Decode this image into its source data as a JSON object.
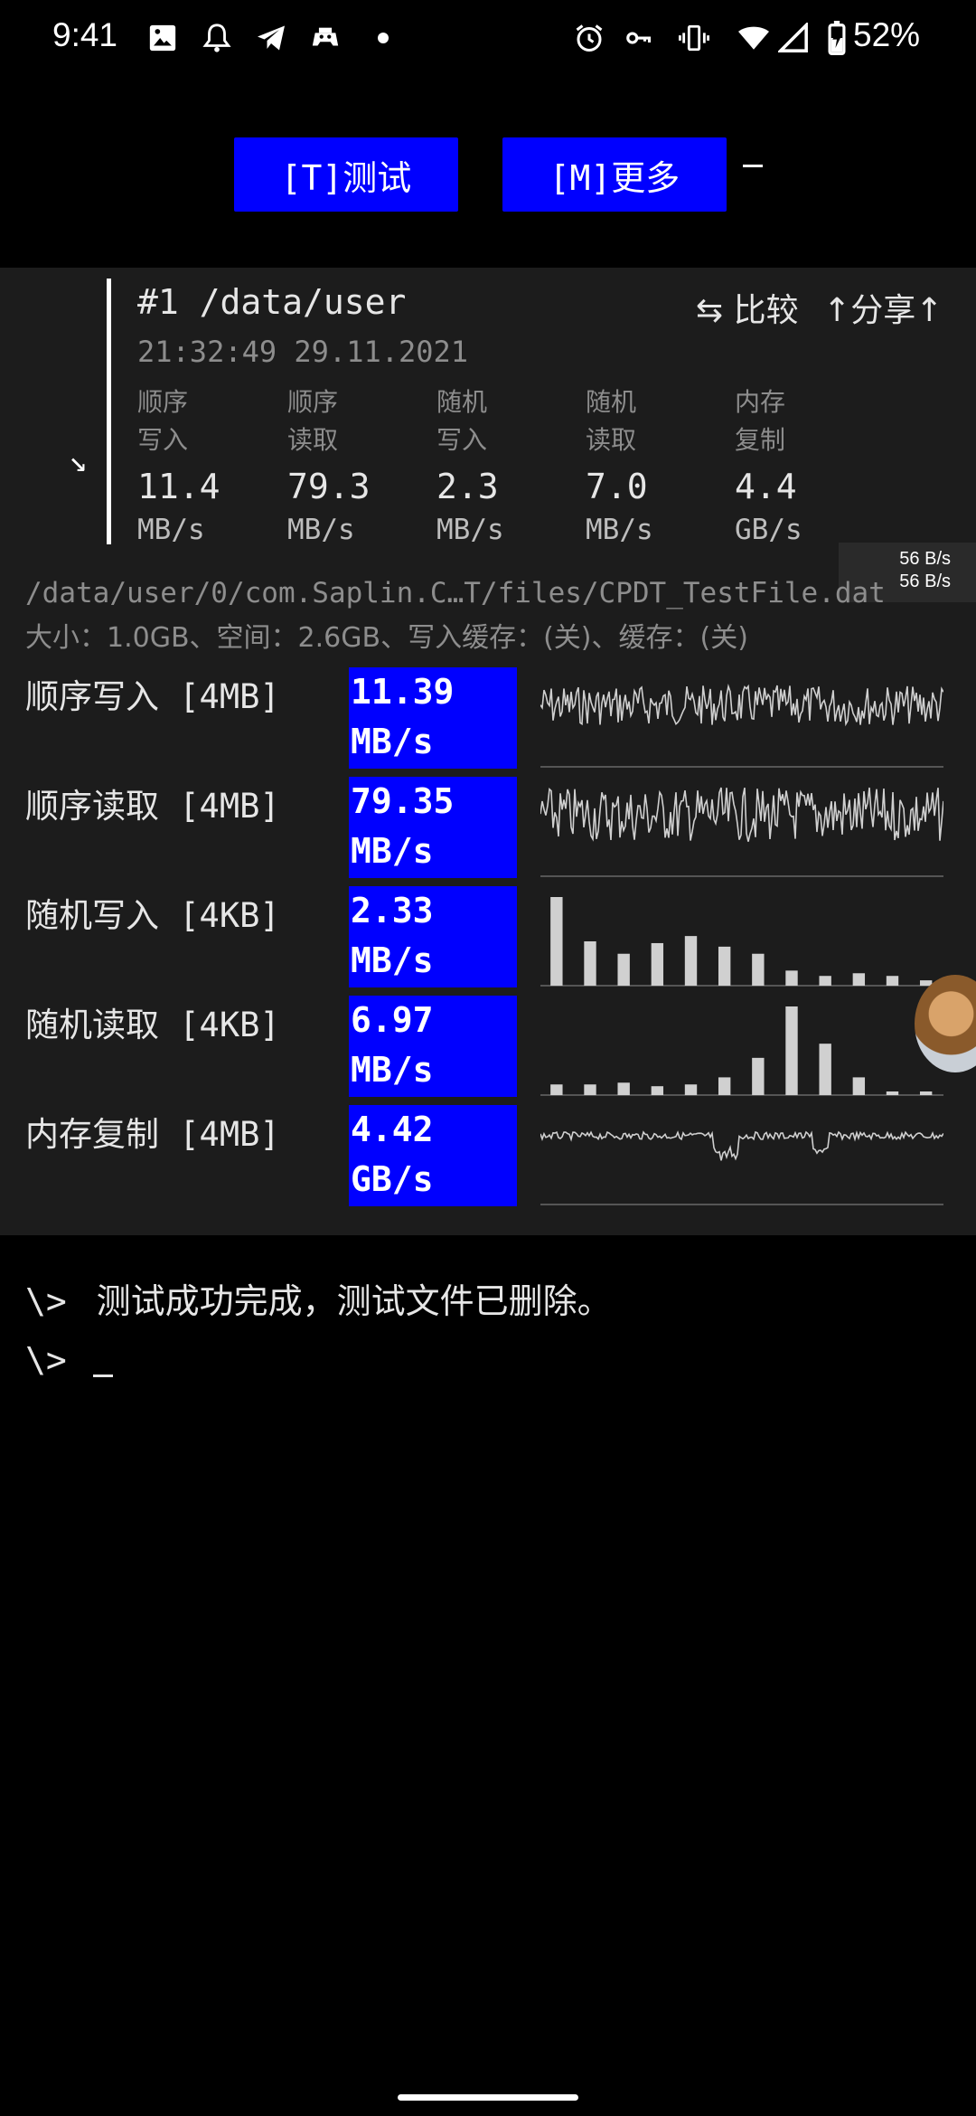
{
  "status_bar": {
    "time": "9:41",
    "battery_percent": "52%",
    "icons": [
      "image-icon",
      "notification-bell-icon",
      "telegram-icon",
      "game-icon",
      "dot-icon",
      "alarm-icon",
      "vpn-key-icon",
      "vibrate-icon",
      "wifi-icon",
      "signal-icon",
      "battery-charging-icon"
    ]
  },
  "toolbar": {
    "test_button": "[T]测试",
    "more_button": "[M]更多"
  },
  "summary": {
    "title": "#1 /data/user",
    "datetime": "21:32:49 29.11.2021",
    "compare_label": "⇆ 比较",
    "share_label": "↑分享↑",
    "metrics": [
      {
        "line1": "顺序",
        "line2": "写入",
        "value": "11.4",
        "unit": "MB/s"
      },
      {
        "line1": "顺序",
        "line2": "读取",
        "value": "79.3",
        "unit": "MB/s"
      },
      {
        "line1": "随机",
        "line2": "写入",
        "value": "2.3",
        "unit": "MB/s"
      },
      {
        "line1": "随机",
        "line2": "读取",
        "value": "7.0",
        "unit": "MB/s"
      },
      {
        "line1": "内存",
        "line2": "复制",
        "value": "4.4",
        "unit": "GB/s"
      }
    ]
  },
  "speed_overlay": {
    "line1": "56 B/s",
    "line2": "56 B/s"
  },
  "details": {
    "path": "/data/user/0/com.Saplin.C…T/files/CPDT_TestFile.dat",
    "info": "大小：1.0GB、空间：2.6GB、写入缓存：(关)、缓存：(关)"
  },
  "results": [
    {
      "label": "顺序写入 [4MB]",
      "value": "11.39",
      "unit": "MB/s",
      "graph": "wave"
    },
    {
      "label": "顺序读取 [4MB]",
      "value": "79.35",
      "unit": "MB/s",
      "graph": "wave"
    },
    {
      "label": "随机写入 [4KB]",
      "value": "2.33",
      "unit": "MB/s",
      "graph": "bars",
      "bars": [
        1.0,
        0.5,
        0.36,
        0.48,
        0.56,
        0.44,
        0.36,
        0.17,
        0.11,
        0.14,
        0.11,
        0.06
      ]
    },
    {
      "label": "随机读取 [4KB]",
      "value": "6.97",
      "unit": "MB/s",
      "graph": "bars",
      "bars": [
        0.12,
        0.12,
        0.14,
        0.1,
        0.12,
        0.2,
        0.42,
        1.0,
        0.58,
        0.2,
        0.02,
        0.02
      ]
    },
    {
      "label": "内存复制 [4MB]",
      "value": "4.42",
      "unit": "GB/s",
      "graph": "wave"
    }
  ],
  "terminal": {
    "prompt": "\\>",
    "message": "测试成功完成，测试文件已删除。"
  }
}
